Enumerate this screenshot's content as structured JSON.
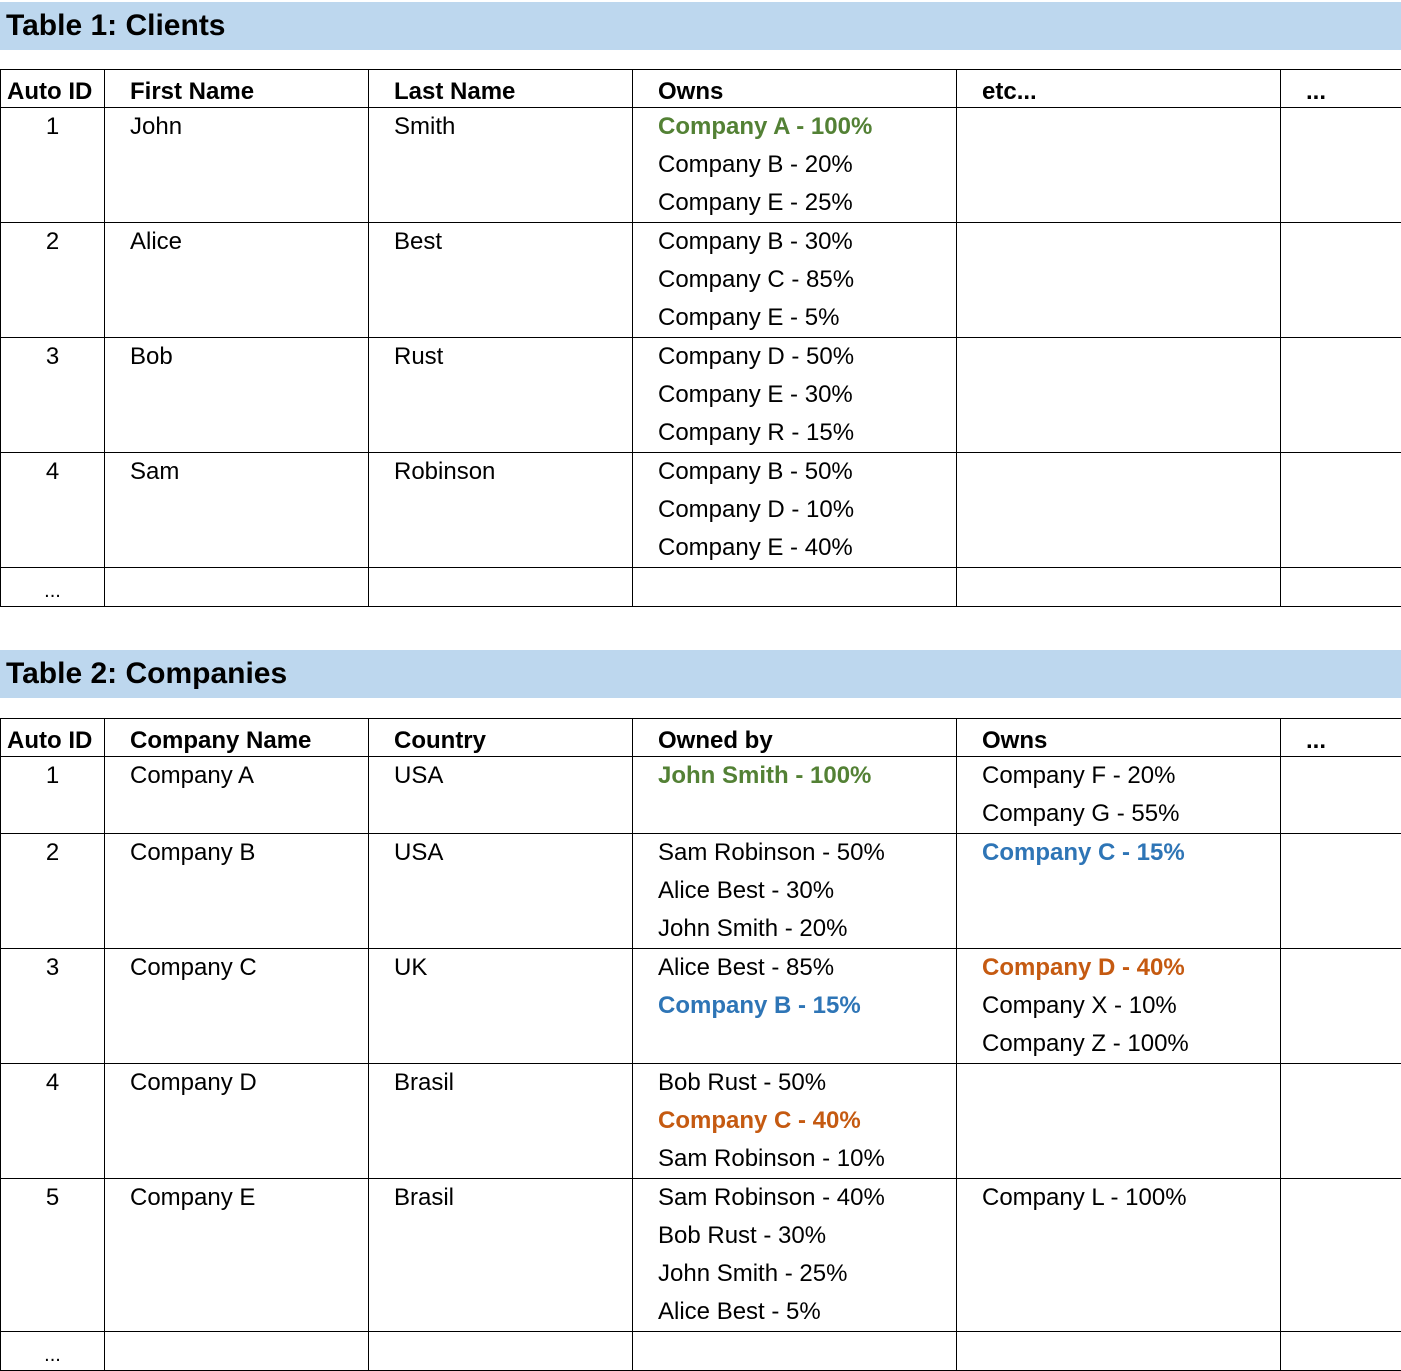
{
  "table1": {
    "title": "Table 1: Clients",
    "headers": [
      "Auto ID",
      "First Name",
      "Last Name",
      "Owns",
      "etc...",
      "..."
    ],
    "rows": [
      {
        "id": "1",
        "first": "John",
        "last": "Smith",
        "owns": [
          {
            "text": "Company A - 100%",
            "style": "green"
          },
          {
            "text": "Company B - 20%"
          },
          {
            "text": "Company E - 25%"
          }
        ]
      },
      {
        "id": "2",
        "first": "Alice",
        "last": "Best",
        "owns": [
          {
            "text": "Company B - 30%"
          },
          {
            "text": "Company C - 85%"
          },
          {
            "text": "Company E - 5%"
          }
        ]
      },
      {
        "id": "3",
        "first": "Bob",
        "last": "Rust",
        "owns": [
          {
            "text": "Company D - 50%"
          },
          {
            "text": "Company E - 30%"
          },
          {
            "text": "Company R - 15%"
          }
        ]
      },
      {
        "id": "4",
        "first": "Sam",
        "last": "Robinson",
        "owns": [
          {
            "text": "Company B - 50%"
          },
          {
            "text": "Company D - 10%"
          },
          {
            "text": "Company E - 40%"
          }
        ]
      }
    ],
    "ellipsis": "..."
  },
  "table2": {
    "title": "Table 2: Companies",
    "headers": [
      "Auto ID",
      "Company Name",
      "Country",
      "Owned by",
      "Owns",
      "..."
    ],
    "rows": [
      {
        "id": "1",
        "name": "Company A",
        "country": "USA",
        "owned_by": [
          {
            "text": "John Smith - 100%",
            "style": "green"
          }
        ],
        "owns": [
          {
            "text": "Company F - 20%"
          },
          {
            "text": "Company G - 55%"
          }
        ]
      },
      {
        "id": "2",
        "name": "Company B",
        "country": "USA",
        "owned_by": [
          {
            "text": "Sam Robinson - 50%"
          },
          {
            "text": "Alice Best - 30%"
          },
          {
            "text": "John Smith - 20%"
          }
        ],
        "owns": [
          {
            "text": "Company C - 15%",
            "style": "blue"
          }
        ]
      },
      {
        "id": "3",
        "name": "Company C",
        "country": "UK",
        "owned_by": [
          {
            "text": "Alice Best - 85%"
          },
          {
            "text": "Company B - 15%",
            "style": "blue"
          }
        ],
        "owns": [
          {
            "text": "Company D - 40%",
            "style": "orange"
          },
          {
            "text": "Company X - 10%"
          },
          {
            "text": "Company Z - 100%"
          }
        ]
      },
      {
        "id": "4",
        "name": "Company D",
        "country": "Brasil",
        "owned_by": [
          {
            "text": "Bob Rust - 50%"
          },
          {
            "text": "Company C - 40%",
            "style": "orange"
          },
          {
            "text": "Sam Robinson - 10%"
          }
        ],
        "owns": []
      },
      {
        "id": "5",
        "name": "Company E",
        "country": "Brasil",
        "owned_by": [
          {
            "text": "Sam Robinson - 40%"
          },
          {
            "text": "Bob Rust - 30%"
          },
          {
            "text": "John Smith - 25%"
          },
          {
            "text": "Alice Best - 5%"
          }
        ],
        "owns": [
          {
            "text": "Company L - 100%"
          }
        ]
      }
    ],
    "ellipsis": "..."
  },
  "colors": {
    "title_bar": "#bdd7ee",
    "green": "#538135",
    "blue": "#2e75b6",
    "orange": "#c55a11"
  }
}
